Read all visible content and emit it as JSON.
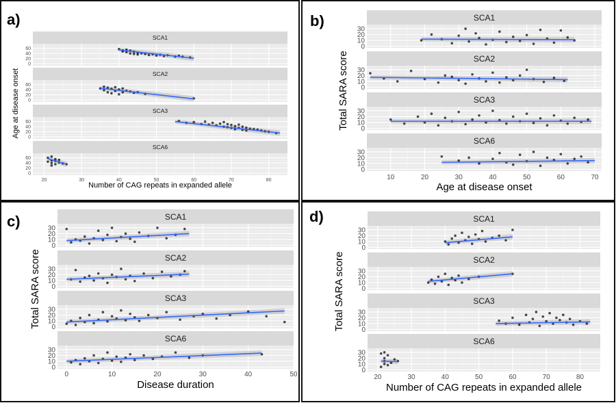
{
  "chart_data": [
    {
      "panel_label": "a)",
      "type": "scatter",
      "xlabel": "Number of CAG repeats in expanded allele",
      "ylabel": "Age at disease onset",
      "xlim": [
        17,
        85
      ],
      "xticks": [
        20,
        30,
        40,
        50,
        60,
        70,
        80
      ],
      "ylim": [
        -8,
        78
      ],
      "yticks": [
        0,
        20,
        40,
        60
      ],
      "facets": [
        {
          "title": "SCA1",
          "x": [
            40,
            41,
            41,
            42,
            42,
            43,
            43,
            44,
            44,
            45,
            45,
            46,
            47,
            48,
            49,
            50,
            51,
            52,
            53,
            55,
            56,
            57,
            59
          ],
          "y": [
            57,
            52,
            48,
            55,
            45,
            51,
            40,
            47,
            38,
            43,
            36,
            41,
            38,
            34,
            37,
            32,
            35,
            30,
            33,
            28,
            31,
            27,
            24
          ],
          "fit": [
            [
              40,
              54
            ],
            [
              60,
              21
            ]
          ]
        },
        {
          "title": "SCA2",
          "x": [
            35,
            36,
            36,
            37,
            37,
            38,
            38,
            39,
            39,
            40,
            40,
            41,
            41,
            42,
            43,
            44,
            45,
            47,
            60
          ],
          "y": [
            45,
            52,
            38,
            48,
            30,
            44,
            26,
            50,
            35,
            41,
            22,
            45,
            30,
            36,
            33,
            28,
            30,
            24,
            6
          ],
          "fit": [
            [
              35,
              46
            ],
            [
              60,
              4
            ]
          ]
        },
        {
          "title": "SCA3",
          "x": [
            56,
            58,
            60,
            62,
            63,
            64,
            65,
            66,
            67,
            68,
            68,
            69,
            69,
            70,
            70,
            71,
            71,
            72,
            72,
            73,
            73,
            74,
            74,
            75,
            76,
            77,
            78,
            79,
            80,
            82
          ],
          "y": [
            62,
            55,
            58,
            50,
            60,
            48,
            55,
            45,
            52,
            40,
            58,
            38,
            50,
            35,
            47,
            42,
            30,
            48,
            35,
            40,
            28,
            36,
            25,
            32,
            30,
            28,
            25,
            22,
            20,
            15
          ],
          "fit": [
            [
              55,
              60
            ],
            [
              83,
              15
            ]
          ]
        },
        {
          "title": "SCA6",
          "x": [
            21,
            21,
            22,
            22,
            22,
            22,
            23,
            23,
            23,
            24,
            24,
            25,
            26
          ],
          "y": [
            45,
            60,
            30,
            50,
            65,
            40,
            55,
            35,
            48,
            42,
            52,
            38,
            35
          ],
          "fit": [
            [
              21,
              57
            ],
            [
              26,
              35
            ]
          ]
        }
      ]
    },
    {
      "panel_label": "b)",
      "type": "scatter",
      "xlabel": "Age at disease onset",
      "ylabel": "Total SARA score",
      "xlim": [
        3,
        72
      ],
      "xticks": [
        10,
        20,
        30,
        40,
        50,
        60,
        70
      ],
      "ylim": [
        -3,
        37
      ],
      "yticks": [
        0,
        10,
        20,
        30
      ],
      "facets": [
        {
          "title": "SCA1",
          "x": [
            19,
            22,
            25,
            28,
            30,
            32,
            33,
            35,
            36,
            38,
            40,
            42,
            44,
            46,
            48,
            50,
            52,
            54,
            56,
            58,
            60,
            62,
            64
          ],
          "y": [
            10,
            20,
            12,
            5,
            18,
            30,
            8,
            22,
            14,
            3,
            11,
            25,
            7,
            16,
            9,
            19,
            4,
            28,
            13,
            6,
            27,
            15,
            10
          ],
          "fit": [
            [
              19,
              12
            ],
            [
              64,
              11
            ]
          ]
        },
        {
          "title": "SCA2",
          "x": [
            4,
            8,
            12,
            16,
            20,
            24,
            26,
            28,
            30,
            32,
            34,
            36,
            38,
            40,
            42,
            44,
            46,
            48,
            50,
            52,
            55,
            58,
            61
          ],
          "y": [
            24,
            15,
            10,
            28,
            14,
            8,
            20,
            18,
            12,
            6,
            22,
            15,
            10,
            25,
            8,
            17,
            12,
            20,
            30,
            14,
            9,
            16,
            11
          ],
          "fit": [
            [
              4,
              17
            ],
            [
              62,
              13
            ]
          ]
        },
        {
          "title": "SCA3",
          "x": [
            10,
            14,
            18,
            20,
            22,
            24,
            26,
            28,
            30,
            32,
            34,
            36,
            38,
            40,
            42,
            44,
            46,
            48,
            50,
            52,
            54,
            56,
            58,
            60,
            62,
            64,
            66,
            68
          ],
          "y": [
            15,
            8,
            20,
            10,
            25,
            5,
            18,
            12,
            28,
            7,
            15,
            22,
            10,
            30,
            14,
            8,
            20,
            12,
            25,
            9,
            17,
            5,
            22,
            13,
            8,
            18,
            11,
            15
          ],
          "fit": [
            [
              10,
              12
            ],
            [
              69,
              12
            ]
          ]
        },
        {
          "title": "SCA6",
          "x": [
            25,
            30,
            33,
            36,
            40,
            42,
            44,
            46,
            48,
            50,
            52,
            54,
            56,
            58,
            60,
            62,
            64,
            66,
            68
          ],
          "y": [
            22,
            15,
            20,
            10,
            18,
            28,
            12,
            8,
            25,
            14,
            30,
            6,
            20,
            16,
            26,
            10,
            18,
            22,
            12
          ],
          "fit": [
            [
              25,
              12
            ],
            [
              70,
              15
            ]
          ]
        }
      ]
    },
    {
      "panel_label": "c)",
      "type": "scatter",
      "xlabel": "Disease duration",
      "ylabel": "Total SARA score",
      "xlim": [
        -2,
        50
      ],
      "xticks": [
        0,
        10,
        20,
        30,
        40,
        50
      ],
      "ylim": [
        -3,
        37
      ],
      "yticks": [
        0,
        10,
        20,
        30
      ],
      "facets": [
        {
          "title": "SCA1",
          "x": [
            0,
            1,
            2,
            3,
            4,
            5,
            6,
            7,
            8,
            9,
            10,
            11,
            12,
            13,
            14,
            15,
            16,
            18,
            20,
            22,
            24,
            26
          ],
          "y": [
            28,
            5,
            10,
            8,
            15,
            3,
            12,
            25,
            9,
            18,
            30,
            7,
            14,
            20,
            11,
            6,
            22,
            16,
            30,
            12,
            18,
            28
          ],
          "fit": [
            [
              0,
              8
            ],
            [
              27,
              20
            ]
          ]
        },
        {
          "title": "SCA2",
          "x": [
            1,
            2,
            3,
            4,
            5,
            6,
            7,
            8,
            9,
            10,
            11,
            12,
            13,
            14,
            15,
            17,
            19,
            21,
            23,
            25,
            26
          ],
          "y": [
            12,
            28,
            8,
            15,
            18,
            10,
            22,
            14,
            6,
            20,
            16,
            30,
            12,
            18,
            9,
            22,
            14,
            25,
            17,
            20,
            26
          ],
          "fit": [
            [
              0,
              12
            ],
            [
              27,
              21
            ]
          ]
        },
        {
          "title": "SCA3",
          "x": [
            0,
            1,
            2,
            3,
            4,
            5,
            6,
            7,
            8,
            9,
            10,
            11,
            12,
            13,
            14,
            15,
            16,
            18,
            20,
            22,
            25,
            28,
            30,
            33,
            36,
            40,
            44,
            48
          ],
          "y": [
            5,
            10,
            3,
            15,
            8,
            20,
            6,
            12,
            25,
            9,
            18,
            14,
            28,
            11,
            22,
            16,
            10,
            20,
            15,
            25,
            12,
            18,
            22,
            14,
            20,
            26,
            18,
            8
          ],
          "fit": [
            [
              0,
              8
            ],
            [
              48,
              27
            ]
          ]
        },
        {
          "title": "SCA6",
          "x": [
            1,
            2,
            3,
            4,
            5,
            6,
            7,
            8,
            9,
            10,
            11,
            12,
            13,
            14,
            15,
            17,
            19,
            21,
            24,
            27,
            30,
            43
          ],
          "y": [
            8,
            12,
            5,
            15,
            10,
            20,
            7,
            14,
            25,
            11,
            18,
            9,
            16,
            22,
            12,
            20,
            14,
            18,
            25,
            16,
            20,
            22
          ],
          "fit": [
            [
              0,
              10
            ],
            [
              43,
              24
            ]
          ]
        }
      ]
    },
    {
      "panel_label": "d)",
      "type": "scatter",
      "xlabel": "Number of CAG repeats in expanded allele",
      "ylabel": "Total SARA score",
      "xlim": [
        17,
        86
      ],
      "xticks": [
        20,
        30,
        40,
        50,
        60,
        70,
        80
      ],
      "ylim": [
        -3,
        37
      ],
      "yticks": [
        0,
        10,
        20,
        30
      ],
      "facets": [
        {
          "title": "SCA1",
          "x": [
            40,
            41,
            42,
            43,
            44,
            45,
            46,
            47,
            48,
            49,
            50,
            51,
            52,
            54,
            56,
            58,
            60
          ],
          "y": [
            10,
            5,
            15,
            20,
            8,
            25,
            12,
            18,
            6,
            22,
            14,
            28,
            10,
            16,
            20,
            12,
            30
          ],
          "fit": [
            [
              40,
              8
            ],
            [
              60,
              18
            ]
          ]
        },
        {
          "title": "SCA2",
          "x": [
            35,
            36,
            37,
            38,
            39,
            40,
            41,
            42,
            43,
            44,
            45,
            47,
            50,
            60
          ],
          "y": [
            10,
            15,
            8,
            20,
            12,
            25,
            6,
            18,
            14,
            22,
            10,
            16,
            20,
            25
          ],
          "fit": [
            [
              35,
              12
            ],
            [
              60,
              25
            ]
          ]
        },
        {
          "title": "SCA3",
          "x": [
            56,
            58,
            60,
            62,
            64,
            65,
            66,
            67,
            68,
            69,
            70,
            71,
            72,
            73,
            74,
            75,
            76,
            77,
            78,
            80,
            82
          ],
          "y": [
            15,
            10,
            20,
            8,
            25,
            12,
            18,
            30,
            6,
            22,
            14,
            28,
            10,
            20,
            16,
            25,
            12,
            18,
            8,
            14,
            10
          ],
          "fit": [
            [
              55,
              10
            ],
            [
              83,
              13
            ]
          ]
        },
        {
          "title": "SCA6",
          "x": [
            21,
            21,
            22,
            22,
            22,
            22,
            23,
            23,
            24,
            25,
            26
          ],
          "y": [
            5,
            28,
            10,
            20,
            30,
            15,
            8,
            25,
            12,
            18,
            15
          ],
          "fit": [
            [
              21,
              15
            ],
            [
              26,
              14
            ]
          ]
        }
      ]
    }
  ]
}
